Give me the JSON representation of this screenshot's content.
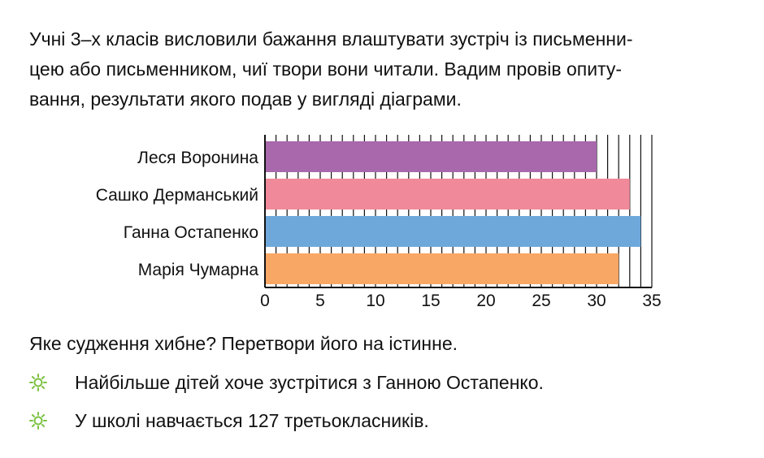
{
  "intro": {
    "line1": "Учні 3–х класів висловили бажання влаштувати зустріч із письменни-",
    "line2": "цею або письменником, чиї твори вони читали. Вадим провів опиту-",
    "line3": "вання, результати якого подав у вигляді діаграми."
  },
  "question": "Яке судження хибне? Перетвори його на істинне.",
  "statements": [
    {
      "icon": "sun-icon",
      "text": "Найбільше дітей хоче зустрітися з Ганною Остапенко."
    },
    {
      "icon": "sun-icon",
      "text": "У школі навчається 127 третьокласників."
    }
  ],
  "colors": {
    "accent_icon": "#7cc142",
    "bar_1": "#a868ab",
    "bar_2": "#f08a9a",
    "bar_3": "#6ea8db",
    "bar_4": "#f9a764"
  },
  "chart_data": {
    "type": "bar",
    "orientation": "horizontal",
    "categories": [
      "Леся Воронина",
      "Сашко Дерманський",
      "Ганна Остапенко",
      "Марія Чумарна"
    ],
    "values": [
      30,
      33,
      34,
      32
    ],
    "bar_colors": [
      "#a868ab",
      "#f08a9a",
      "#6ea8db",
      "#f9a764"
    ],
    "xlim": [
      0,
      35
    ],
    "xticks": [
      0,
      5,
      10,
      15,
      20,
      25,
      30,
      35
    ],
    "grid": "vertical every 1 unit",
    "title": "",
    "xlabel": "",
    "ylabel": ""
  }
}
